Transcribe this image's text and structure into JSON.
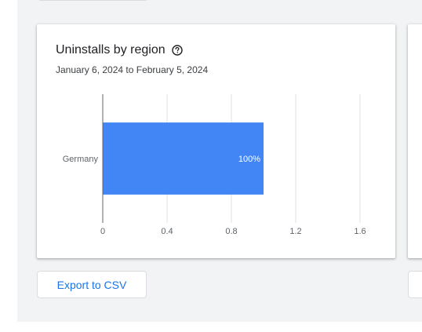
{
  "card": {
    "title": "Uninstalls by region",
    "help_icon": "help-circle-icon",
    "subtitle": "January 6, 2024 to February 5, 2024"
  },
  "chart_data": {
    "type": "bar",
    "orientation": "horizontal",
    "categories": [
      "Germany"
    ],
    "values": [
      1.0
    ],
    "data_labels": [
      "100%"
    ],
    "xlim": [
      0,
      1.6
    ],
    "x_ticks": [
      "0",
      "0.4",
      "0.8",
      "1.2",
      "1.6"
    ],
    "grid": true,
    "bar_color": "#4285f4"
  },
  "actions": {
    "export_label": "Export to CSV"
  },
  "colors": {
    "accent": "#1a73e8",
    "bar": "#4285f4"
  }
}
